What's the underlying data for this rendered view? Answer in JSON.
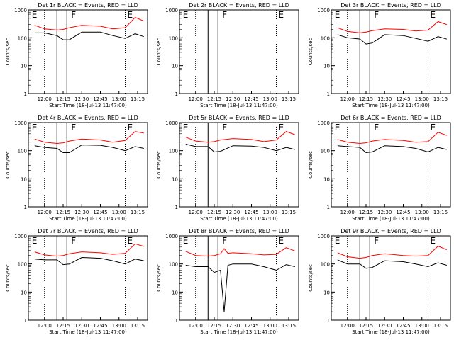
{
  "chart_data": [
    {
      "type": "line",
      "title": "Det 1r BLACK = Events, RED = LLD",
      "xlabel": "Start Time (18-Jul-13 11:47:00)",
      "ylabel": "Counts/sec",
      "x": [
        "11:52",
        "12:00",
        "12:10",
        "12:15",
        "12:20",
        "12:30",
        "12:45",
        "12:55",
        "13:05",
        "13:13",
        "13:20"
      ],
      "series": [
        {
          "name": "BLACK",
          "color": "#000000",
          "values": [
            150,
            150,
            120,
            85,
            85,
            160,
            160,
            120,
            95,
            140,
            110
          ]
        },
        {
          "name": "RED",
          "color": "#ff0000",
          "values": [
            280,
            210,
            190,
            200,
            230,
            280,
            260,
            210,
            230,
            540,
            400
          ]
        }
      ]
    },
    {
      "type": "line",
      "title": "Det 2r BLACK = Events, RED = LLD",
      "xlabel": "Start Time (18-Jul-13 11:47:00)",
      "ylabel": "Counts/sec",
      "x": [
        "11:52",
        "12:00",
        "12:10",
        "12:15",
        "12:20",
        "12:30",
        "12:45",
        "12:55",
        "13:05",
        "13:13",
        "13:20"
      ],
      "series": []
    },
    {
      "type": "line",
      "title": "Det 3r BLACK = Events, RED = LLD",
      "xlabel": "Start Time (18-Jul-13 11:47:00)",
      "ylabel": "Counts/sec",
      "x": [
        "11:52",
        "12:00",
        "12:10",
        "12:15",
        "12:20",
        "12:30",
        "12:45",
        "12:55",
        "13:05",
        "13:13",
        "13:20"
      ],
      "series": [
        {
          "name": "BLACK",
          "color": "#000000",
          "values": [
            130,
            100,
            90,
            60,
            65,
            130,
            120,
            95,
            75,
            110,
            90
          ]
        },
        {
          "name": "RED",
          "color": "#ff0000",
          "values": [
            230,
            170,
            150,
            160,
            180,
            210,
            200,
            175,
            190,
            380,
            300
          ]
        }
      ]
    },
    {
      "type": "line",
      "title": "Det 4r BLACK = Events, RED = LLD",
      "xlabel": "Start Time (18-Jul-13 11:47:00)",
      "ylabel": "Counts/sec",
      "x": [
        "11:52",
        "12:00",
        "12:10",
        "12:15",
        "12:20",
        "12:30",
        "12:45",
        "12:55",
        "13:05",
        "13:13",
        "13:20"
      ],
      "series": [
        {
          "name": "BLACK",
          "color": "#000000",
          "values": [
            150,
            130,
            120,
            85,
            85,
            160,
            155,
            130,
            100,
            140,
            120
          ]
        },
        {
          "name": "RED",
          "color": "#ff0000",
          "values": [
            260,
            200,
            180,
            190,
            220,
            260,
            240,
            200,
            230,
            480,
            420
          ]
        }
      ]
    },
    {
      "type": "line",
      "title": "Det 5r BLACK = Events, RED = LLD",
      "xlabel": "Start Time (18-Jul-13 11:47:00)",
      "ylabel": "Counts/sec",
      "x": [
        "11:52",
        "12:00",
        "12:10",
        "12:15",
        "12:20",
        "12:30",
        "12:45",
        "12:55",
        "13:05",
        "13:13",
        "13:20"
      ],
      "series": [
        {
          "name": "BLACK",
          "color": "#000000",
          "values": [
            170,
            140,
            140,
            90,
            95,
            150,
            145,
            130,
            100,
            130,
            110
          ]
        },
        {
          "name": "RED",
          "color": "#ff0000",
          "values": [
            300,
            220,
            200,
            210,
            240,
            270,
            250,
            210,
            240,
            480,
            370
          ]
        }
      ]
    },
    {
      "type": "line",
      "title": "Det 6r BLACK = Events, RED = LLD",
      "xlabel": "Start Time (18-Jul-13 11:47:00)",
      "ylabel": "Counts/sec",
      "x": [
        "11:52",
        "12:00",
        "12:10",
        "12:15",
        "12:20",
        "12:30",
        "12:45",
        "12:55",
        "13:05",
        "13:13",
        "13:20"
      ],
      "series": [
        {
          "name": "BLACK",
          "color": "#000000",
          "values": [
            150,
            140,
            130,
            85,
            90,
            150,
            140,
            120,
            90,
            130,
            110
          ]
        },
        {
          "name": "RED",
          "color": "#ff0000",
          "values": [
            250,
            200,
            180,
            190,
            220,
            250,
            230,
            200,
            210,
            450,
            350
          ]
        }
      ]
    },
    {
      "type": "line",
      "title": "Det 7r BLACK = Events, RED = LLD",
      "xlabel": "Start Time (18-Jul-13 11:47:00)",
      "ylabel": "Counts/sec",
      "x": [
        "11:52",
        "12:00",
        "12:10",
        "12:15",
        "12:20",
        "12:30",
        "12:45",
        "12:55",
        "13:05",
        "13:13",
        "13:20"
      ],
      "series": [
        {
          "name": "BLACK",
          "color": "#000000",
          "values": [
            150,
            140,
            140,
            95,
            100,
            170,
            160,
            130,
            100,
            150,
            130
          ]
        },
        {
          "name": "RED",
          "color": "#ff0000",
          "values": [
            270,
            210,
            190,
            200,
            230,
            270,
            250,
            220,
            240,
            520,
            420
          ]
        }
      ]
    },
    {
      "type": "line",
      "title": "Det 8r BLACK = Events, RED = LLD",
      "xlabel": "Start Time (18-Jul-13 11:47:00)",
      "ylabel": "Counts/sec",
      "x": [
        "11:52",
        "12:00",
        "12:10",
        "12:15",
        "12:20",
        "12:23",
        "12:26",
        "12:30",
        "12:45",
        "12:55",
        "13:05",
        "13:13",
        "13:20"
      ],
      "series": [
        {
          "name": "BLACK",
          "color": "#000000",
          "values": [
            90,
            80,
            80,
            50,
            60,
            2,
            90,
            100,
            100,
            80,
            60,
            95,
            80
          ]
        },
        {
          "name": "RED",
          "color": "#ff0000",
          "values": [
            280,
            200,
            190,
            200,
            230,
            350,
            240,
            250,
            230,
            210,
            220,
            380,
            290
          ]
        }
      ]
    },
    {
      "type": "line",
      "title": "Det 9r BLACK = Events, RED = LLD",
      "xlabel": "Start Time (18-Jul-13 11:47:00)",
      "ylabel": "Counts/sec",
      "x": [
        "11:52",
        "12:00",
        "12:10",
        "12:15",
        "12:20",
        "12:30",
        "12:45",
        "12:55",
        "13:05",
        "13:13",
        "13:20"
      ],
      "series": [
        {
          "name": "BLACK",
          "color": "#000000",
          "values": [
            140,
            100,
            100,
            70,
            75,
            130,
            120,
            100,
            80,
            110,
            90
          ]
        },
        {
          "name": "RED",
          "color": "#ff0000",
          "values": [
            250,
            180,
            160,
            170,
            200,
            230,
            200,
            190,
            200,
            430,
            320
          ]
        }
      ]
    }
  ],
  "shared": {
    "x_ticks": [
      "12:00",
      "12:15",
      "12:30",
      "12:45",
      "13:00",
      "13:15"
    ],
    "y_ticks": [
      "1",
      "10",
      "100",
      "1000"
    ],
    "ylim": [
      1,
      1000
    ],
    "yscale": "log",
    "markers": [
      "E",
      "F",
      "E"
    ],
    "dotted_lines_at": [
      "12:00",
      "13:05"
    ],
    "solid_lines_at": [
      "12:10",
      "12:18"
    ]
  }
}
